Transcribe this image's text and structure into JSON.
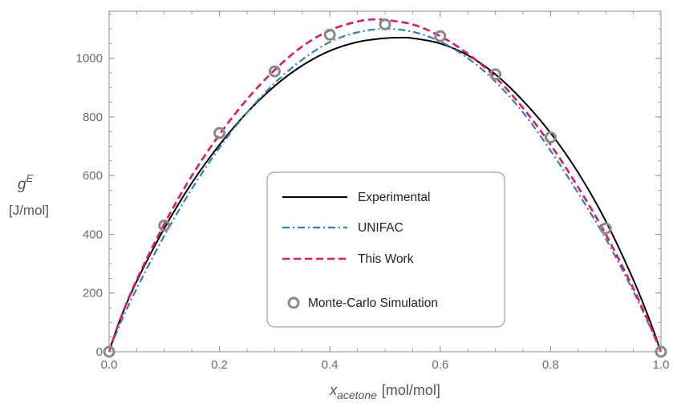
{
  "chart_data": {
    "type": "line",
    "x_axis": {
      "label_main": "x",
      "label_sub": "acetone",
      "label_unit": "[mol/mol]",
      "range": [
        0,
        1
      ],
      "ticks": [
        0.0,
        0.2,
        0.4,
        0.6,
        0.8,
        1.0
      ],
      "tick_labels": [
        "0.0",
        "0.2",
        "0.4",
        "0.6",
        "0.8",
        "1.0"
      ]
    },
    "y_axis": {
      "label_main": "g",
      "label_sup": "E",
      "label_unit": "[J/mol]",
      "range": [
        0,
        1160
      ],
      "ticks": [
        0,
        200,
        400,
        600,
        800,
        1000
      ],
      "tick_labels": [
        "0",
        "200",
        "400",
        "600",
        "800",
        "1000"
      ]
    },
    "grid": false,
    "legend_position": "center",
    "series": [
      {
        "name": "Experimental",
        "kind": "line",
        "style": "solid",
        "color": "#000000",
        "x": [
          0.0,
          0.02,
          0.05,
          0.1,
          0.15,
          0.2,
          0.25,
          0.3,
          0.35,
          0.4,
          0.45,
          0.5,
          0.53,
          0.55,
          0.6,
          0.65,
          0.7,
          0.75,
          0.8,
          0.85,
          0.9,
          0.95,
          0.98,
          1.0
        ],
        "y": [
          0,
          110,
          240,
          420,
          575,
          705,
          815,
          905,
          975,
          1025,
          1055,
          1068,
          1070,
          1068,
          1050,
          1010,
          945,
          855,
          745,
          610,
          445,
          245,
          105,
          0
        ]
      },
      {
        "name": "UNIFAC",
        "kind": "line",
        "style": "dash-dot",
        "color": "#2f7fc0",
        "x": [
          0.0,
          0.02,
          0.05,
          0.1,
          0.15,
          0.2,
          0.25,
          0.3,
          0.35,
          0.4,
          0.45,
          0.5,
          0.55,
          0.6,
          0.65,
          0.7,
          0.75,
          0.8,
          0.85,
          0.9,
          0.95,
          0.98,
          1.0
        ],
        "y": [
          0,
          95,
          215,
          395,
          555,
          695,
          815,
          915,
          995,
          1055,
          1088,
          1100,
          1090,
          1057,
          1000,
          920,
          815,
          685,
          540,
          385,
          205,
          85,
          0
        ]
      },
      {
        "name": "This Work",
        "kind": "line",
        "style": "dashed",
        "color": "#e8175d",
        "x": [
          0.0,
          0.02,
          0.05,
          0.1,
          0.15,
          0.2,
          0.25,
          0.3,
          0.35,
          0.4,
          0.45,
          0.48,
          0.5,
          0.55,
          0.6,
          0.65,
          0.7,
          0.75,
          0.8,
          0.85,
          0.9,
          0.95,
          0.98,
          1.0
        ],
        "y": [
          0,
          110,
          245,
          435,
          600,
          740,
          860,
          960,
          1040,
          1095,
          1125,
          1132,
          1130,
          1115,
          1075,
          1015,
          935,
          830,
          705,
          560,
          400,
          215,
          90,
          0
        ]
      },
      {
        "name": "Monte-Carlo Simulation",
        "kind": "scatter",
        "color": "#8a8a8a",
        "x": [
          0.0,
          0.1,
          0.2,
          0.3,
          0.4,
          0.5,
          0.6,
          0.7,
          0.8,
          0.9,
          1.0
        ],
        "y": [
          0,
          430,
          745,
          955,
          1080,
          1115,
          1075,
          945,
          730,
          420,
          0
        ]
      }
    ]
  }
}
